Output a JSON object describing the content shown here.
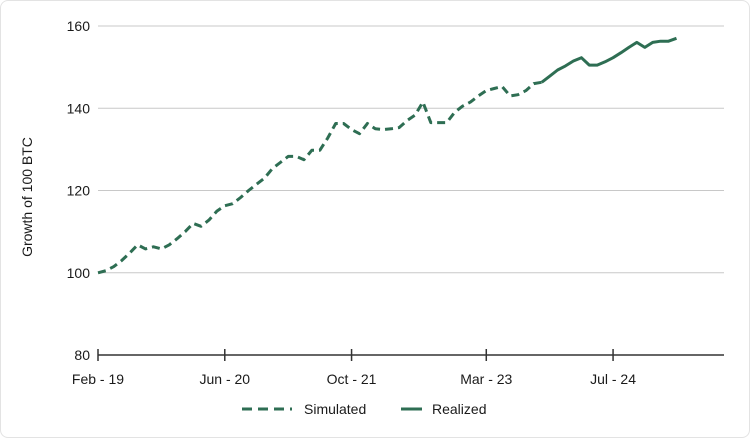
{
  "chart_data": {
    "type": "line",
    "title": "",
    "xlabel": "",
    "ylabel": "Growth of 100 BTC",
    "ylim": [
      80,
      160
    ],
    "yticks": [
      "80",
      "100",
      "120",
      "140",
      "160"
    ],
    "xlim": [
      "2019-02",
      "2025-09"
    ],
    "xticks": [
      {
        "date": "2019-02",
        "label": "Feb - 19"
      },
      {
        "date": "2020-06",
        "label": "Jun - 20"
      },
      {
        "date": "2021-10",
        "label": "Oct - 21"
      },
      {
        "date": "2023-03",
        "label": "Mar - 23"
      },
      {
        "date": "2024-07",
        "label": "Jul - 24"
      }
    ],
    "grid": true,
    "legend_position": "bottom-center",
    "series": [
      {
        "name": "Simulated",
        "style": "dashed",
        "color": "#2e6e53",
        "points": [
          [
            "2019-02",
            100.0
          ],
          [
            "2019-03",
            100.5
          ],
          [
            "2019-04",
            101.5
          ],
          [
            "2019-05",
            103.0
          ],
          [
            "2019-06",
            104.8
          ],
          [
            "2019-07",
            106.8
          ],
          [
            "2019-08",
            105.8
          ],
          [
            "2019-09",
            106.3
          ],
          [
            "2019-10",
            105.8
          ],
          [
            "2019-11",
            106.8
          ],
          [
            "2019-12",
            108.3
          ],
          [
            "2020-01",
            110.0
          ],
          [
            "2020-02",
            112.0
          ],
          [
            "2020-03",
            111.3
          ],
          [
            "2020-04",
            112.8
          ],
          [
            "2020-05",
            115.0
          ],
          [
            "2020-06",
            116.3
          ],
          [
            "2020-07",
            116.8
          ],
          [
            "2020-08",
            118.3
          ],
          [
            "2020-09",
            120.0
          ],
          [
            "2020-10",
            121.5
          ],
          [
            "2020-11",
            123.0
          ],
          [
            "2020-12",
            125.3
          ],
          [
            "2021-01",
            126.8
          ],
          [
            "2021-02",
            128.3
          ],
          [
            "2021-03",
            128.3
          ],
          [
            "2021-04",
            127.5
          ],
          [
            "2021-05",
            129.8
          ],
          [
            "2021-06",
            129.8
          ],
          [
            "2021-07",
            132.8
          ],
          [
            "2021-08",
            136.3
          ],
          [
            "2021-09",
            136.3
          ],
          [
            "2021-10",
            134.8
          ],
          [
            "2021-11",
            133.8
          ],
          [
            "2021-12",
            136.3
          ],
          [
            "2022-01",
            135.0
          ],
          [
            "2022-02",
            134.8
          ],
          [
            "2022-03",
            135.0
          ],
          [
            "2022-04",
            135.3
          ],
          [
            "2022-05",
            137.0
          ],
          [
            "2022-06",
            138.3
          ],
          [
            "2022-07",
            141.5
          ],
          [
            "2022-08",
            136.5
          ],
          [
            "2022-09",
            136.5
          ],
          [
            "2022-10",
            136.5
          ],
          [
            "2022-11",
            139.0
          ],
          [
            "2022-12",
            140.5
          ],
          [
            "2023-01",
            141.5
          ],
          [
            "2023-02",
            143.0
          ],
          [
            "2023-03",
            144.3
          ],
          [
            "2023-04",
            144.8
          ],
          [
            "2023-05",
            145.3
          ],
          [
            "2023-06",
            143.0
          ],
          [
            "2023-07",
            143.3
          ],
          [
            "2023-08",
            144.3
          ],
          [
            "2023-09",
            146.0
          ],
          [
            "2023-10",
            146.3
          ]
        ]
      },
      {
        "name": "Realized",
        "style": "solid",
        "color": "#2e6e53",
        "points": [
          [
            "2023-10",
            146.3
          ],
          [
            "2023-11",
            147.8
          ],
          [
            "2023-12",
            149.3
          ],
          [
            "2024-01",
            150.3
          ],
          [
            "2024-02",
            151.5
          ],
          [
            "2024-03",
            152.3
          ],
          [
            "2024-04",
            150.5
          ],
          [
            "2024-05",
            150.5
          ],
          [
            "2024-06",
            151.3
          ],
          [
            "2024-07",
            152.3
          ],
          [
            "2024-08",
            153.5
          ],
          [
            "2024-09",
            154.8
          ],
          [
            "2024-10",
            156.0
          ],
          [
            "2024-11",
            154.8
          ],
          [
            "2024-12",
            156.0
          ],
          [
            "2025-01",
            156.3
          ],
          [
            "2025-02",
            156.3
          ],
          [
            "2025-03",
            157.0
          ]
        ]
      }
    ]
  }
}
